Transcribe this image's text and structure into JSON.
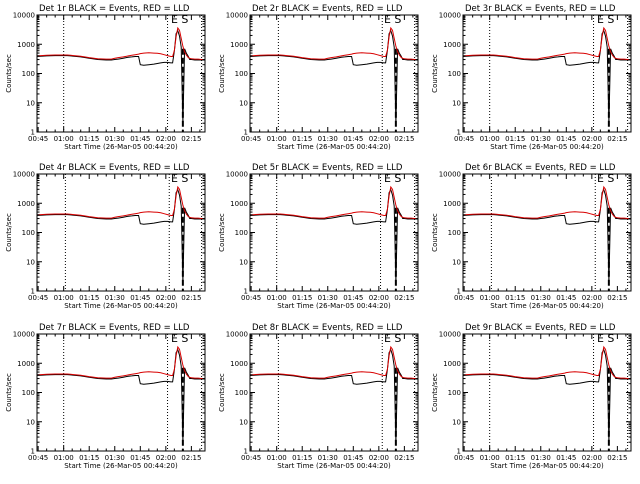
{
  "chart_data": {
    "type": "line",
    "scale_y": "log",
    "ylim": [
      1,
      10000
    ],
    "yticks": [
      "1",
      "10",
      "100",
      "1000",
      "10000"
    ],
    "ylabel": "Counts/sec",
    "xlabel": "Start Time (26-Mar-05 00:44:20)",
    "x_ticks": [
      "00:45",
      "01:00",
      "01:15",
      "01:30",
      "01:45",
      "02:00",
      "02:15"
    ],
    "x_tick_minutes": [
      45,
      60,
      75,
      90,
      105,
      120,
      135
    ],
    "xlim_minutes": [
      44.33,
      143
    ],
    "flag_label": "E S",
    "x": [
      44.3,
      50,
      55,
      60,
      62,
      64,
      66,
      70,
      75,
      80,
      85,
      88,
      90,
      92,
      95,
      98,
      100,
      102,
      104,
      105,
      107,
      110,
      113,
      115,
      117,
      119,
      121,
      123,
      124,
      125,
      126,
      127,
      128,
      129,
      130,
      131,
      132,
      133,
      134,
      135,
      137,
      139,
      141,
      143
    ],
    "series": [
      {
        "name": "Events",
        "color": "#000000",
        "values": [
          380,
          400,
          410,
          410,
          410,
          400,
          390,
          370,
          330,
          300,
          290,
          290,
          300,
          310,
          330,
          360,
          370,
          380,
          380,
          200,
          190,
          200,
          210,
          220,
          230,
          240,
          240,
          230,
          230,
          600,
          2300,
          2900,
          1900,
          800,
          2,
          700,
          500,
          400,
          300,
          300,
          290,
          290,
          290,
          290
        ]
      },
      {
        "name": "LLD",
        "color": "#d80000",
        "values": [
          400,
          420,
          430,
          430,
          430,
          420,
          410,
          390,
          350,
          320,
          310,
          310,
          330,
          350,
          370,
          400,
          420,
          440,
          460,
          480,
          500,
          510,
          500,
          490,
          470,
          440,
          410,
          380,
          380,
          620,
          1800,
          3600,
          3000,
          1600,
          850,
          550,
          430,
          360,
          330,
          320,
          310,
          310,
          300,
          300
        ]
      }
    ],
    "dotted_lines_minutes": [
      [
        60,
        121,
        141
      ],
      [
        61,
        122,
        141
      ],
      [
        60,
        121,
        141
      ],
      [
        61,
        122,
        141
      ],
      [
        60,
        121,
        141
      ],
      [
        61,
        122,
        141
      ],
      [
        60,
        121,
        141
      ],
      [
        61,
        122,
        141
      ],
      [
        60,
        121,
        141
      ]
    ],
    "dashed_line_minutes": 130,
    "panels": [
      {
        "title": "Det 1r BLACK = Events, RED = LLD"
      },
      {
        "title": "Det 2r BLACK = Events, RED = LLD"
      },
      {
        "title": "Det 3r BLACK = Events, RED = LLD"
      },
      {
        "title": "Det 4r BLACK = Events, RED = LLD"
      },
      {
        "title": "Det 5r BLACK = Events, RED = LLD"
      },
      {
        "title": "Det 6r BLACK = Events, RED = LLD"
      },
      {
        "title": "Det 7r BLACK = Events, RED = LLD"
      },
      {
        "title": "Det 8r BLACK = Events, RED = LLD"
      },
      {
        "title": "Det 9r BLACK = Events, RED = LLD"
      }
    ]
  }
}
